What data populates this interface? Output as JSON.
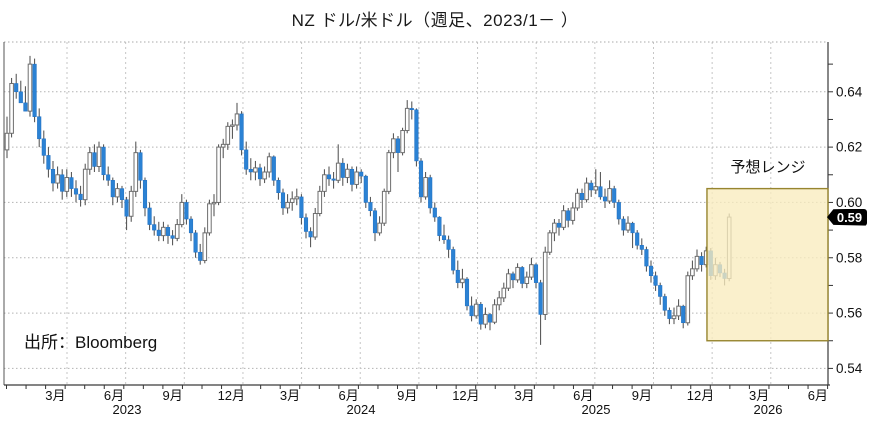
{
  "title": "NZ ドル/米ドル（週足、2023/1－ ）",
  "source": "出所：Bloomberg",
  "last_price_tag": "0.59",
  "chart_data": {
    "type": "candlestick",
    "title": "NZ ドル/米ドル（週足、2023/1－ ）",
    "timeframe": "weekly",
    "start": "2023/1",
    "ylim": [
      0.534,
      0.658
    ],
    "y_tick_labels": [
      "0.64",
      "0.62",
      "0.60",
      "0.58",
      "0.56",
      "0.54"
    ],
    "y_tick_values": [
      0.64,
      0.62,
      0.6,
      0.58,
      0.56,
      0.54
    ],
    "y_minor_tick_step": 0.01,
    "grid": "quarterly-vertical, 0.02-horizontal, dotted",
    "x_month_labels": [
      "3月",
      "6月",
      "9月",
      "12月",
      "3月",
      "6月",
      "9月",
      "12月",
      "3月",
      "6月",
      "9月",
      "12月",
      "3月",
      "6月"
    ],
    "x_year_labels": [
      "2023",
      "2024",
      "2025",
      "2026"
    ],
    "legend_position": "none",
    "up_candle_color": "#ffffff",
    "down_candle_color": "#2b82d4",
    "forecast_range": {
      "label": "予想レンジ",
      "low": 0.55,
      "high": 0.605,
      "from_week_index": 152.6,
      "box_fill": "#f8ecbe",
      "box_border": "#97852f"
    },
    "last_price_label": "0.59",
    "candles_format": [
      "open",
      "high",
      "low",
      "close"
    ],
    "candles": [
      [
        0.619,
        0.631,
        0.616,
        0.625
      ],
      [
        0.625,
        0.645,
        0.6235,
        0.643
      ],
      [
        0.643,
        0.6465,
        0.6375,
        0.64
      ],
      [
        0.64,
        0.644,
        0.6365,
        0.636
      ],
      [
        0.636,
        0.642,
        0.633,
        0.633
      ],
      [
        0.633,
        0.653,
        0.631,
        0.65
      ],
      [
        0.65,
        0.652,
        0.629,
        0.631
      ],
      [
        0.631,
        0.634,
        0.62,
        0.623
      ],
      [
        0.623,
        0.626,
        0.614,
        0.617
      ],
      [
        0.617,
        0.62,
        0.609,
        0.612
      ],
      [
        0.612,
        0.615,
        0.604,
        0.607
      ],
      [
        0.607,
        0.613,
        0.605,
        0.61
      ],
      [
        0.61,
        0.612,
        0.601,
        0.604
      ],
      [
        0.604,
        0.612,
        0.602,
        0.609
      ],
      [
        0.609,
        0.611,
        0.602,
        0.605
      ],
      [
        0.605,
        0.608,
        0.6,
        0.603
      ],
      [
        0.603,
        0.606,
        0.5985,
        0.601
      ],
      [
        0.601,
        0.614,
        0.599,
        0.612
      ],
      [
        0.612,
        0.62,
        0.61,
        0.618
      ],
      [
        0.618,
        0.621,
        0.611,
        0.613
      ],
      [
        0.613,
        0.622,
        0.611,
        0.62
      ],
      [
        0.62,
        0.621,
        0.608,
        0.61
      ],
      [
        0.61,
        0.613,
        0.606,
        0.608
      ],
      [
        0.608,
        0.609,
        0.599,
        0.602
      ],
      [
        0.602,
        0.607,
        0.6,
        0.605
      ],
      [
        0.605,
        0.606,
        0.598,
        0.601
      ],
      [
        0.601,
        0.602,
        0.59,
        0.595
      ],
      [
        0.595,
        0.606,
        0.593,
        0.604
      ],
      [
        0.604,
        0.622,
        0.602,
        0.618
      ],
      [
        0.618,
        0.619,
        0.605,
        0.608
      ],
      [
        0.608,
        0.609,
        0.595,
        0.598
      ],
      [
        0.598,
        0.6,
        0.59,
        0.592
      ],
      [
        0.592,
        0.595,
        0.588,
        0.59
      ],
      [
        0.59,
        0.593,
        0.586,
        0.588
      ],
      [
        0.588,
        0.593,
        0.586,
        0.591
      ],
      [
        0.591,
        0.592,
        0.585,
        0.588
      ],
      [
        0.588,
        0.59,
        0.5845,
        0.587
      ],
      [
        0.587,
        0.594,
        0.586,
        0.592
      ],
      [
        0.592,
        0.603,
        0.591,
        0.6
      ],
      [
        0.6,
        0.601,
        0.592,
        0.594
      ],
      [
        0.594,
        0.595,
        0.586,
        0.589
      ],
      [
        0.589,
        0.59,
        0.58,
        0.582
      ],
      [
        0.582,
        0.585,
        0.5775,
        0.579
      ],
      [
        0.579,
        0.591,
        0.578,
        0.589
      ],
      [
        0.589,
        0.601,
        0.588,
        0.5995
      ],
      [
        0.5995,
        0.603,
        0.595,
        0.6
      ],
      [
        0.6,
        0.621,
        0.599,
        0.62
      ],
      [
        0.62,
        0.623,
        0.616,
        0.621
      ],
      [
        0.621,
        0.629,
        0.619,
        0.6275
      ],
      [
        0.6275,
        0.63,
        0.623,
        0.628
      ],
      [
        0.628,
        0.636,
        0.626,
        0.632
      ],
      [
        0.632,
        0.633,
        0.617,
        0.619
      ],
      [
        0.619,
        0.622,
        0.61,
        0.612
      ],
      [
        0.612,
        0.616,
        0.608,
        0.611
      ],
      [
        0.611,
        0.615,
        0.608,
        0.6125
      ],
      [
        0.6125,
        0.614,
        0.606,
        0.6085
      ],
      [
        0.6085,
        0.613,
        0.607,
        0.611
      ],
      [
        0.611,
        0.618,
        0.609,
        0.6165
      ],
      [
        0.6165,
        0.617,
        0.606,
        0.608
      ],
      [
        0.608,
        0.609,
        0.601,
        0.6035
      ],
      [
        0.6035,
        0.605,
        0.5955,
        0.598
      ],
      [
        0.598,
        0.603,
        0.596,
        0.6
      ],
      [
        0.6,
        0.604,
        0.597,
        0.6013
      ],
      [
        0.6013,
        0.605,
        0.599,
        0.602
      ],
      [
        0.602,
        0.603,
        0.592,
        0.5945
      ],
      [
        0.5945,
        0.596,
        0.587,
        0.5895
      ],
      [
        0.5895,
        0.591,
        0.5838,
        0.5875
      ],
      [
        0.5875,
        0.598,
        0.5865,
        0.596
      ],
      [
        0.596,
        0.606,
        0.595,
        0.604
      ],
      [
        0.604,
        0.612,
        0.602,
        0.61
      ],
      [
        0.61,
        0.613,
        0.606,
        0.6085
      ],
      [
        0.6085,
        0.611,
        0.605,
        0.608
      ],
      [
        0.608,
        0.621,
        0.607,
        0.6142
      ],
      [
        0.6142,
        0.616,
        0.606,
        0.609
      ],
      [
        0.609,
        0.614,
        0.607,
        0.612
      ],
      [
        0.612,
        0.613,
        0.604,
        0.6065
      ],
      [
        0.6065,
        0.613,
        0.605,
        0.611
      ],
      [
        0.611,
        0.612,
        0.607,
        0.6095
      ],
      [
        0.6095,
        0.61,
        0.598,
        0.6
      ],
      [
        0.6,
        0.602,
        0.595,
        0.597
      ],
      [
        0.597,
        0.598,
        0.586,
        0.589
      ],
      [
        0.589,
        0.595,
        0.588,
        0.5925
      ],
      [
        0.5925,
        0.605,
        0.5915,
        0.604
      ],
      [
        0.604,
        0.619,
        0.603,
        0.618
      ],
      [
        0.618,
        0.625,
        0.616,
        0.623
      ],
      [
        0.623,
        0.624,
        0.611,
        0.618
      ],
      [
        0.618,
        0.627,
        0.617,
        0.626
      ],
      [
        0.626,
        0.637,
        0.625,
        0.634
      ],
      [
        0.634,
        0.6365,
        0.63,
        0.6335
      ],
      [
        0.6335,
        0.634,
        0.613,
        0.615
      ],
      [
        0.615,
        0.616,
        0.6,
        0.602
      ],
      [
        0.602,
        0.611,
        0.601,
        0.609
      ],
      [
        0.609,
        0.61,
        0.596,
        0.598
      ],
      [
        0.598,
        0.6,
        0.593,
        0.5947
      ],
      [
        0.5947,
        0.595,
        0.586,
        0.588
      ],
      [
        0.588,
        0.592,
        0.585,
        0.5865
      ],
      [
        0.5865,
        0.588,
        0.58,
        0.583
      ],
      [
        0.583,
        0.584,
        0.574,
        0.5755
      ],
      [
        0.5755,
        0.579,
        0.569,
        0.571
      ],
      [
        0.571,
        0.576,
        0.569,
        0.5723
      ],
      [
        0.5723,
        0.573,
        0.561,
        0.5626
      ],
      [
        0.5626,
        0.566,
        0.557,
        0.559
      ],
      [
        0.559,
        0.565,
        0.558,
        0.5632
      ],
      [
        0.5632,
        0.564,
        0.554,
        0.556
      ],
      [
        0.556,
        0.562,
        0.5545,
        0.5595
      ],
      [
        0.5595,
        0.56,
        0.5538,
        0.5567
      ],
      [
        0.5567,
        0.565,
        0.556,
        0.563
      ],
      [
        0.563,
        0.568,
        0.561,
        0.5655
      ],
      [
        0.5655,
        0.571,
        0.564,
        0.569
      ],
      [
        0.569,
        0.576,
        0.568,
        0.5742
      ],
      [
        0.5742,
        0.575,
        0.569,
        0.572
      ],
      [
        0.572,
        0.578,
        0.571,
        0.5765
      ],
      [
        0.5765,
        0.577,
        0.569,
        0.5707
      ],
      [
        0.5707,
        0.575,
        0.569,
        0.573
      ],
      [
        0.573,
        0.58,
        0.572,
        0.5775
      ],
      [
        0.5775,
        0.578,
        0.569,
        0.571
      ],
      [
        0.571,
        0.572,
        0.5485,
        0.5595
      ],
      [
        0.5595,
        0.584,
        0.5575,
        0.582
      ],
      [
        0.582,
        0.59,
        0.581,
        0.589
      ],
      [
        0.589,
        0.594,
        0.586,
        0.5925
      ],
      [
        0.5925,
        0.594,
        0.588,
        0.591
      ],
      [
        0.591,
        0.599,
        0.59,
        0.597
      ],
      [
        0.597,
        0.598,
        0.591,
        0.5935
      ],
      [
        0.5935,
        0.6,
        0.592,
        0.598
      ],
      [
        0.598,
        0.605,
        0.597,
        0.6033
      ],
      [
        0.6033,
        0.605,
        0.598,
        0.601
      ],
      [
        0.601,
        0.609,
        0.6,
        0.607
      ],
      [
        0.607,
        0.608,
        0.602,
        0.6045
      ],
      [
        0.6045,
        0.612,
        0.603,
        0.6057
      ],
      [
        0.6057,
        0.611,
        0.601,
        0.602
      ],
      [
        0.602,
        0.605,
        0.598,
        0.6005
      ],
      [
        0.6005,
        0.608,
        0.5995,
        0.605
      ],
      [
        0.605,
        0.606,
        0.598,
        0.6
      ],
      [
        0.6,
        0.601,
        0.592,
        0.594
      ],
      [
        0.594,
        0.595,
        0.588,
        0.59
      ],
      [
        0.59,
        0.595,
        0.589,
        0.5925
      ],
      [
        0.5925,
        0.593,
        0.5835,
        0.589
      ],
      [
        0.589,
        0.59,
        0.583,
        0.5845
      ],
      [
        0.5845,
        0.587,
        0.581,
        0.583
      ],
      [
        0.583,
        0.584,
        0.575,
        0.577
      ],
      [
        0.577,
        0.579,
        0.571,
        0.5735
      ],
      [
        0.5735,
        0.575,
        0.568,
        0.57
      ],
      [
        0.57,
        0.571,
        0.563,
        0.566
      ],
      [
        0.566,
        0.567,
        0.559,
        0.561
      ],
      [
        0.561,
        0.562,
        0.556,
        0.558
      ],
      [
        0.558,
        0.562,
        0.556,
        0.559
      ],
      [
        0.559,
        0.565,
        0.5575,
        0.5625
      ],
      [
        0.5625,
        0.563,
        0.5545,
        0.5565
      ],
      [
        0.5565,
        0.575,
        0.5555,
        0.5735
      ],
      [
        0.5735,
        0.579,
        0.572,
        0.576
      ],
      [
        0.576,
        0.583,
        0.575,
        0.5805
      ],
      [
        0.5805,
        0.582,
        0.575,
        0.5775
      ],
      [
        0.5775,
        0.584,
        0.5765,
        0.5825
      ],
      [
        0.5825,
        0.5835,
        0.572,
        0.5735
      ],
      [
        0.5735,
        0.58,
        0.572,
        0.5775
      ],
      [
        0.5775,
        0.5785,
        0.573,
        0.5745
      ],
      [
        0.5745,
        0.576,
        0.57,
        0.5725
      ],
      [
        0.5725,
        0.596,
        0.5715,
        0.5947
      ]
    ]
  }
}
